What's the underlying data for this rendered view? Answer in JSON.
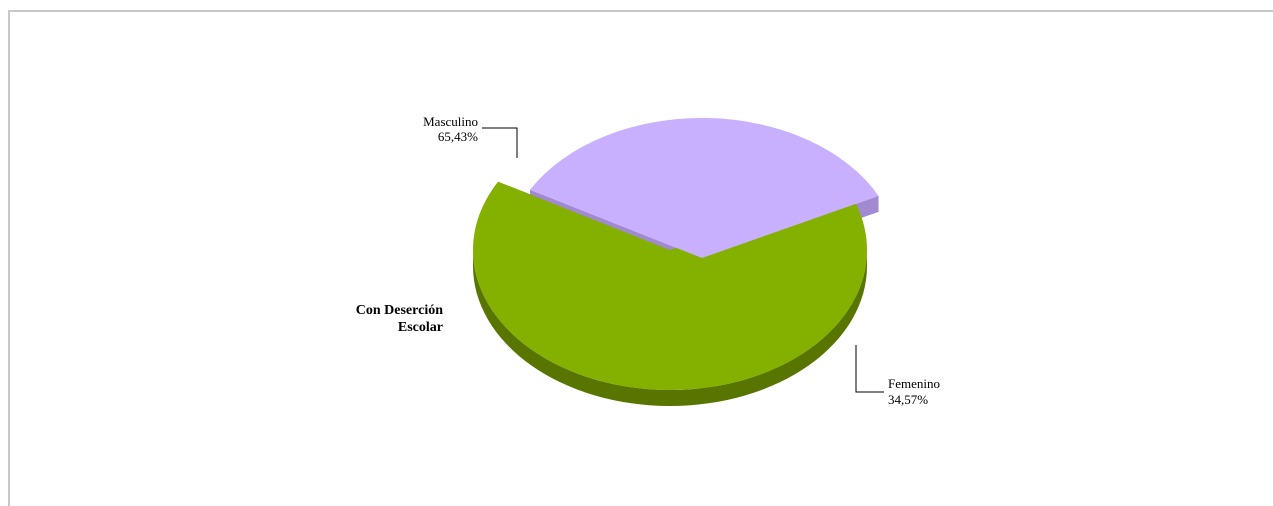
{
  "chart_data": {
    "type": "pie",
    "series_label": "Con Deserción Escolar",
    "slices": [
      {
        "label": "Masculino",
        "value": 65.43,
        "value_text": "65,43%",
        "color": "#84b000",
        "side_color": "#587500"
      },
      {
        "label": "Femenino",
        "value": 34.57,
        "value_text": "34,57%",
        "color": "#c8b0ff",
        "side_color": "#a28ad2"
      }
    ],
    "series_label_lines": [
      "Con Deserción",
      "Escolar"
    ],
    "style": "3d-exploded"
  }
}
